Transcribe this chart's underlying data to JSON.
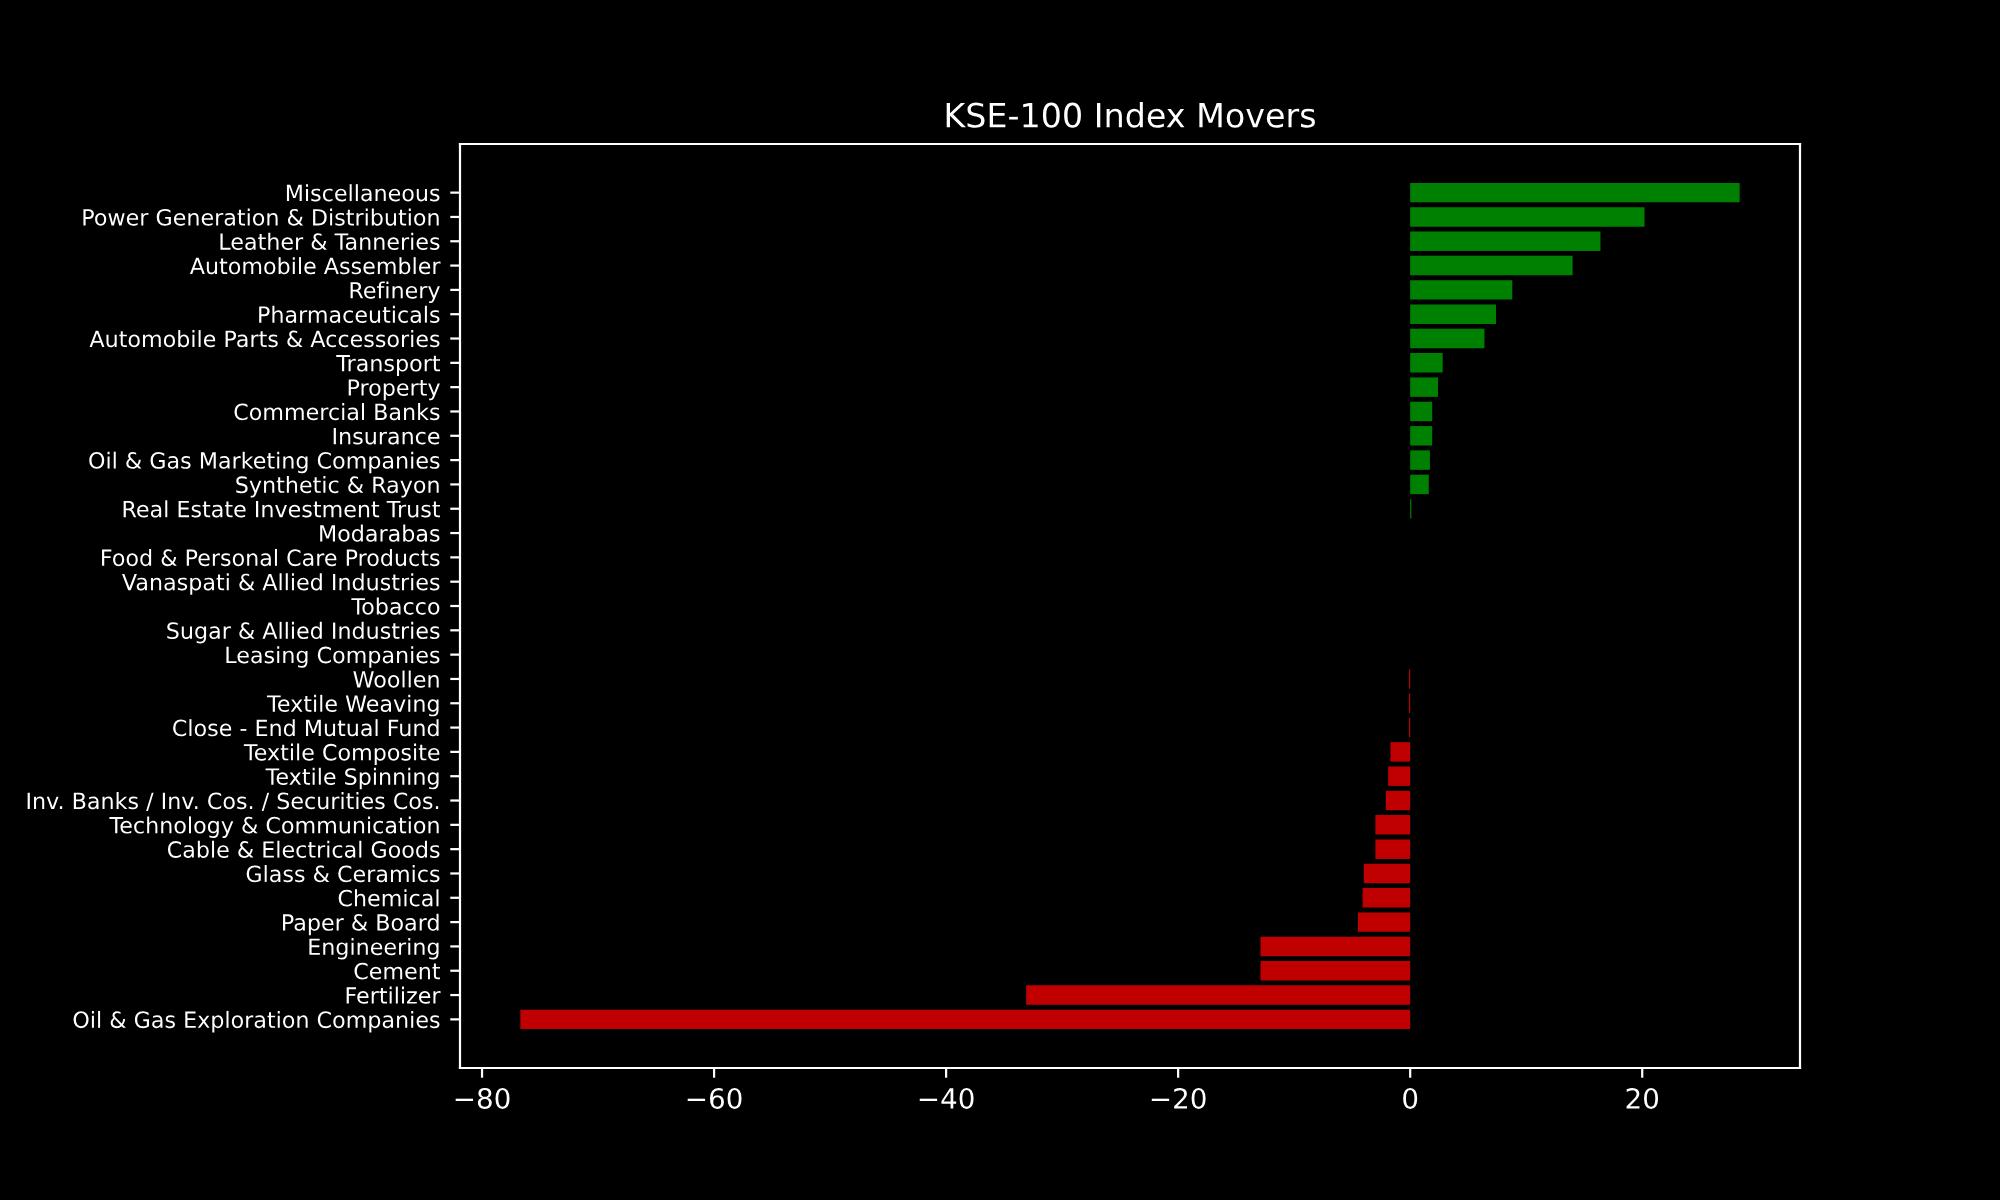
{
  "chart_data": {
    "type": "bar",
    "orientation": "horizontal",
    "title": "KSE-100 Index Movers",
    "categories": [
      "Miscellaneous",
      "Power Generation & Distribution",
      "Leather & Tanneries",
      "Automobile Assembler",
      "Refinery",
      "Pharmaceuticals",
      "Automobile Parts & Accessories",
      "Transport",
      "Property",
      "Commercial Banks",
      "Insurance",
      "Oil & Gas Marketing Companies",
      "Synthetic & Rayon",
      "Real Estate Investment Trust",
      "Modarabas",
      "Food & Personal Care Products",
      "Vanaspati & Allied Industries",
      "Tobacco",
      "Sugar & Allied Industries",
      "Leasing Companies",
      "Woollen",
      "Textile Weaving",
      "Close - End Mutual Fund",
      "Textile Composite",
      "Textile Spinning",
      "Inv. Banks / Inv. Cos. / Securities Cos.",
      "Technology & Communication",
      "Cable & Electrical Goods",
      "Glass & Ceramics",
      "Chemical",
      "Paper & Board",
      "Engineering",
      "Cement",
      "Fertilizer",
      "Oil & Gas Exploration Companies"
    ],
    "values": [
      28.4,
      20.2,
      16.4,
      14.0,
      8.8,
      7.4,
      6.4,
      2.8,
      2.4,
      1.9,
      1.9,
      1.7,
      1.6,
      0.1,
      0,
      0,
      0,
      0,
      0,
      0,
      -0.1,
      -0.1,
      -0.1,
      -1.7,
      -1.9,
      -2.1,
      -3.0,
      -3.0,
      -4.0,
      -4.1,
      -4.5,
      -12.9,
      -12.9,
      -33.1,
      -76.7
    ],
    "colors": [
      "#008000",
      "#008000",
      "#008000",
      "#008000",
      "#008000",
      "#008000",
      "#008000",
      "#008000",
      "#008000",
      "#008000",
      "#008000",
      "#008000",
      "#008000",
      "#008000",
      "#008000",
      "#008000",
      "#008000",
      "#008000",
      "#008000",
      "#008000",
      "#c00000",
      "#c00000",
      "#c00000",
      "#c00000",
      "#c00000",
      "#c00000",
      "#c00000",
      "#c00000",
      "#c00000",
      "#c00000",
      "#c00000",
      "#c00000",
      "#c00000",
      "#c00000",
      "#c00000"
    ],
    "xlim": [
      -81.9,
      33.6
    ],
    "xticks": [
      {
        "value": -80,
        "label": "−80"
      },
      {
        "value": -60,
        "label": "−60"
      },
      {
        "value": -40,
        "label": "−40"
      },
      {
        "value": -20,
        "label": "−20"
      },
      0,
      20
    ],
    "grid": false
  }
}
